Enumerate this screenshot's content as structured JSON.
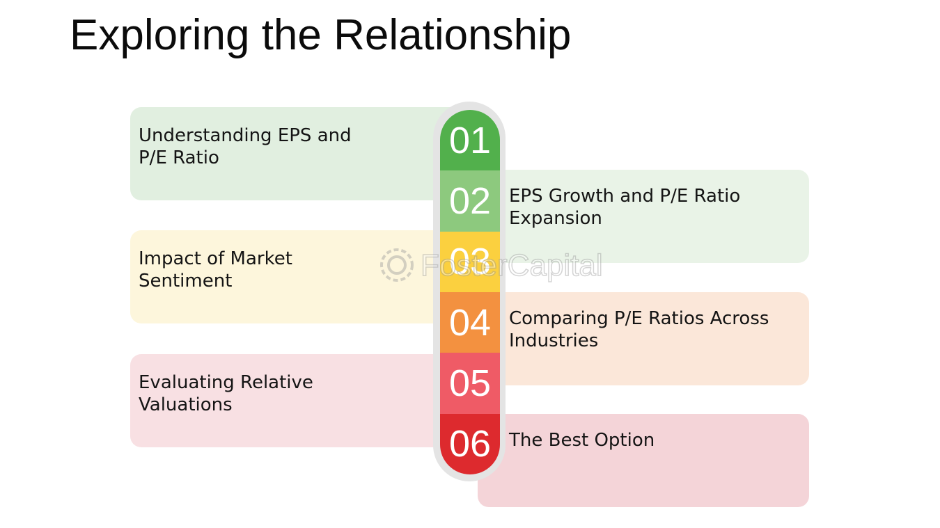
{
  "title": "Exploring the Relationship",
  "watermark": "FosterCapital",
  "steps": [
    {
      "number": "01",
      "label": "Understanding EPS and P/E Ratio",
      "color": "#52b04c"
    },
    {
      "number": "02",
      "label": "EPS Growth and P/E Ratio Expansion",
      "color": "#8dc97e"
    },
    {
      "number": "03",
      "label": "Impact of Market Sentiment",
      "color": "#fbd03f"
    },
    {
      "number": "04",
      "label": "Comparing P/E Ratios Across Industries",
      "color": "#f39140"
    },
    {
      "number": "05",
      "label": "Evaluating Relative Valuations",
      "color": "#ef5b66"
    },
    {
      "number": "06",
      "label": "The Best Option",
      "color": "#dd2a2e"
    }
  ]
}
